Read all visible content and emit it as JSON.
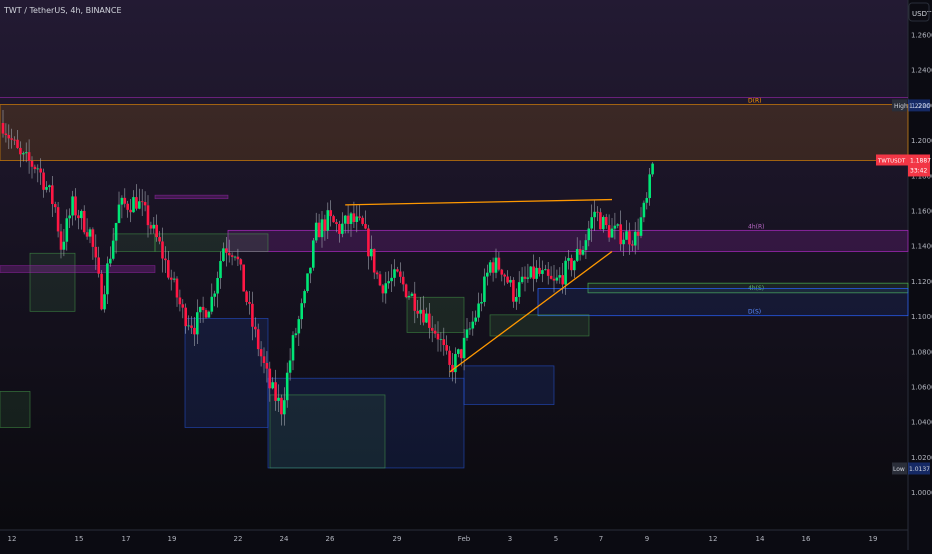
{
  "header": {
    "symbol_line": "TWT / TetherUS, 4h, BINANCE"
  },
  "axis": {
    "currency": "USDT"
  },
  "badges": {
    "high_label": "High",
    "high_value": "1.2200",
    "low_label": "Low",
    "low_value": "1.0137",
    "price_symbol": "TWTUSDT",
    "price_value": "1.1887",
    "countdown": "33:42"
  },
  "zones": {
    "top_label": "D(R)",
    "mid_label": "4h(R)",
    "lower1_label": "4h(S)",
    "lower2_label": "D(S)"
  },
  "colors": {
    "bull": "#26a69a",
    "bear": "#ef5350",
    "bull_bright": "#00e676",
    "bear_bright": "#ff1744",
    "resistance": "#ff9800",
    "resistance4h": "#9c27b0",
    "support": "#4caf50",
    "demand": "#2962ff"
  },
  "chart_data": {
    "type": "candlestick",
    "title": "TWT / TetherUS, 4h, BINANCE",
    "ylim": [
      0.99,
      1.275
    ],
    "y_ticks": [
      "1.2600",
      "1.2400",
      "1.2200",
      "1.2000",
      "1.1800",
      "1.1600",
      "1.1400",
      "1.1200",
      "1.1000",
      "1.0800",
      "1.0600",
      "1.0400",
      "1.0200",
      "1.0000"
    ],
    "x_ticks": [
      "12",
      "15",
      "17",
      "19",
      "22",
      "24",
      "26",
      "29",
      "Feb",
      "3",
      "5",
      "7",
      "9",
      "12",
      "14",
      "16",
      "19"
    ],
    "price_path": [
      [
        0,
        1.21
      ],
      [
        3,
        1.19
      ],
      [
        6,
        1.185
      ],
      [
        9,
        1.162
      ],
      [
        10,
        1.14
      ],
      [
        12,
        1.163
      ],
      [
        15,
        1.148
      ],
      [
        17,
        1.11
      ],
      [
        20,
        1.162
      ],
      [
        23,
        1.166
      ],
      [
        25,
        1.155
      ],
      [
        27,
        1.14
      ],
      [
        31,
        1.102
      ],
      [
        33,
        1.095
      ],
      [
        36,
        1.11
      ],
      [
        38,
        1.14
      ],
      [
        40,
        1.138
      ],
      [
        43,
        1.095
      ],
      [
        46,
        1.06
      ],
      [
        48,
        1.048
      ],
      [
        50,
        1.085
      ],
      [
        52,
        1.11
      ],
      [
        54,
        1.148
      ],
      [
        56,
        1.155
      ],
      [
        58,
        1.15
      ],
      [
        60,
        1.155
      ],
      [
        62,
        1.15
      ],
      [
        65,
        1.118
      ],
      [
        68,
        1.122
      ],
      [
        72,
        1.105
      ],
      [
        75,
        1.09
      ],
      [
        77,
        1.07
      ],
      [
        79,
        1.08
      ],
      [
        82,
        1.105
      ],
      [
        84,
        1.13
      ],
      [
        86,
        1.128
      ],
      [
        88,
        1.113
      ],
      [
        90,
        1.12
      ],
      [
        92,
        1.125
      ],
      [
        95,
        1.118
      ],
      [
        98,
        1.13
      ],
      [
        100,
        1.14
      ],
      [
        102,
        1.16
      ],
      [
        104,
        1.15
      ],
      [
        106,
        1.147
      ],
      [
        109,
        1.145
      ],
      [
        111,
        1.165
      ],
      [
        112,
        1.185
      ]
    ],
    "levels": {
      "high": 1.22,
      "low": 1.0137,
      "current_price": 1.1887,
      "daily_resistance": [
        1.1887,
        1.2205
      ],
      "h4_resistance": [
        1.137,
        1.149
      ],
      "h4_support": 1.119,
      "daily_support": 1.1005,
      "top_line": 1.2245
    },
    "trendlines": [
      {
        "from": [
          59,
          1.1635
        ],
        "to": [
          105,
          1.1665
        ]
      },
      {
        "from": [
          77,
          1.0685
        ],
        "to": [
          105,
          1.137
        ]
      }
    ]
  }
}
